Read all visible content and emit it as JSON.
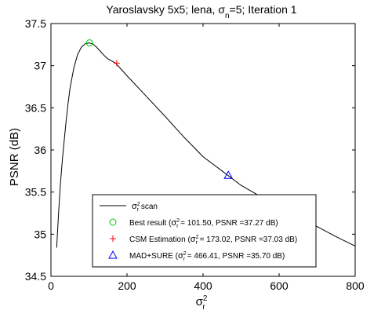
{
  "chart_data": {
    "type": "line",
    "title": {
      "prefix": "Yaroslavsky 5x5; lena, ",
      "sym": "σ",
      "sub": "n",
      "suffix": "=5; Iteration 1"
    },
    "xlabel": {
      "sym": "σ",
      "sup": "2",
      "sub": "r"
    },
    "ylabel": "PSNR (dB)",
    "xlim": [
      0,
      800
    ],
    "ylim": [
      34.5,
      37.5
    ],
    "xticks": [
      "0",
      "200",
      "400",
      "600",
      "800"
    ],
    "yticks": [
      "34.5",
      "35",
      "35.5",
      "36",
      "36.5",
      "37",
      "37.5"
    ],
    "grid": false,
    "legend_position": "bottom-center",
    "series": [
      {
        "type": "line",
        "color": "#000000",
        "x": [
          15,
          20,
          25,
          30,
          35,
          40,
          45,
          50,
          60,
          70,
          80,
          90,
          100,
          110,
          120,
          130,
          140,
          150,
          170,
          200,
          250,
          300,
          350,
          400,
          450,
          500,
          550,
          600,
          650,
          700,
          750,
          800
        ],
        "y": [
          34.84,
          35.25,
          35.6,
          35.88,
          36.12,
          36.35,
          36.55,
          36.73,
          36.97,
          37.13,
          37.22,
          37.26,
          37.27,
          37.26,
          37.22,
          37.17,
          37.12,
          37.08,
          37.03,
          36.88,
          36.64,
          36.4,
          36.15,
          35.92,
          35.75,
          35.58,
          35.45,
          35.33,
          35.2,
          35.09,
          34.97,
          34.86
        ]
      }
    ],
    "markers": [
      {
        "name": "best",
        "shape": "circle",
        "color": "#00cc00",
        "x": 101.5,
        "y": 37.27
      },
      {
        "name": "csm",
        "shape": "plus",
        "color": "#ff0000",
        "x": 173.02,
        "y": 37.03
      },
      {
        "name": "mad",
        "shape": "triangle",
        "color": "#0000ff",
        "x": 466.41,
        "y": 35.7
      }
    ],
    "legend": [
      {
        "shape": "line",
        "color": "#000000",
        "pre": "",
        "sym": "σ",
        "sup": "2",
        "sub": "r",
        "post": " scan"
      },
      {
        "shape": "circle",
        "color": "#00cc00",
        "pre": "Best result (",
        "sym": "σ",
        "sup": "2",
        "sub": "r",
        "post": " = 101.50, PSNR =37.27 dB)"
      },
      {
        "shape": "plus",
        "color": "#ff0000",
        "pre": "CSM Estimation (",
        "sym": "σ",
        "sup": "2",
        "sub": "r",
        "post": " = 173.02, PSNR =37.03 dB)"
      },
      {
        "shape": "triangle",
        "color": "#0000ff",
        "pre": "MAD+SURE (",
        "sym": "σ",
        "sup": "2",
        "sub": "r",
        "post": " = 466.41, PSNR =35.70 dB)"
      }
    ]
  }
}
